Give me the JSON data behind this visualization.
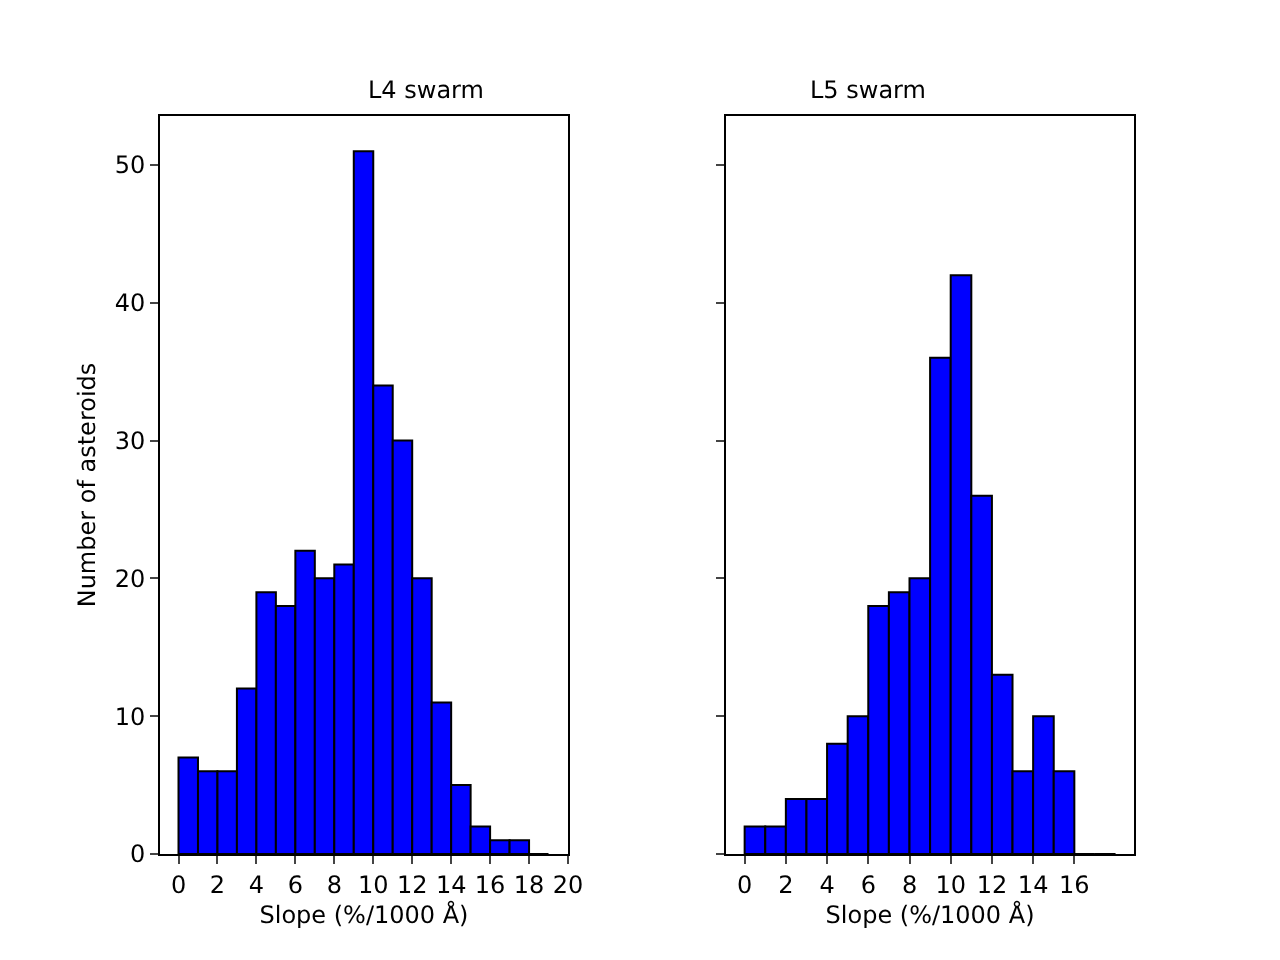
{
  "chart_data": [
    {
      "type": "histogram",
      "title": "L4 swarm",
      "xlabel": "Slope (%/1000 Å)",
      "ylabel": "Number of asteroids",
      "color": "#0000ff",
      "bins": [
        0,
        1,
        2,
        3,
        4,
        5,
        6,
        7,
        8,
        9,
        10,
        11,
        12,
        13,
        14,
        15,
        16,
        17,
        18,
        19
      ],
      "values": [
        7,
        6,
        6,
        12,
        19,
        18,
        22,
        20,
        21,
        51,
        34,
        30,
        20,
        11,
        5,
        2,
        1,
        1,
        0
      ],
      "xlim": [
        -0.95,
        20
      ],
      "xticks": [
        0,
        2,
        4,
        6,
        8,
        10,
        12,
        14,
        16,
        18,
        20
      ],
      "ylim": [
        0,
        53.55
      ],
      "yticks": [
        0,
        10,
        20,
        30,
        40,
        50
      ]
    },
    {
      "type": "histogram",
      "title": "L5 swarm",
      "xlabel": "Slope (%/1000 Å)",
      "color": "#0000ff",
      "bins": [
        0,
        1,
        2,
        3,
        4,
        5,
        6,
        7,
        8,
        9,
        10,
        11,
        12,
        13,
        14,
        15,
        16,
        17,
        18
      ],
      "values": [
        2,
        2,
        4,
        4,
        8,
        10,
        18,
        19,
        20,
        36,
        42,
        26,
        13,
        6,
        10,
        6,
        0,
        0
      ],
      "xlim": [
        -0.9,
        18.9
      ],
      "xticks": [
        0,
        2,
        4,
        6,
        8,
        10,
        12,
        14,
        16
      ],
      "ylim": [
        0,
        53.55
      ],
      "yticks": [
        0,
        10,
        20,
        30,
        40,
        50
      ],
      "tick_labels": "x"
    }
  ]
}
